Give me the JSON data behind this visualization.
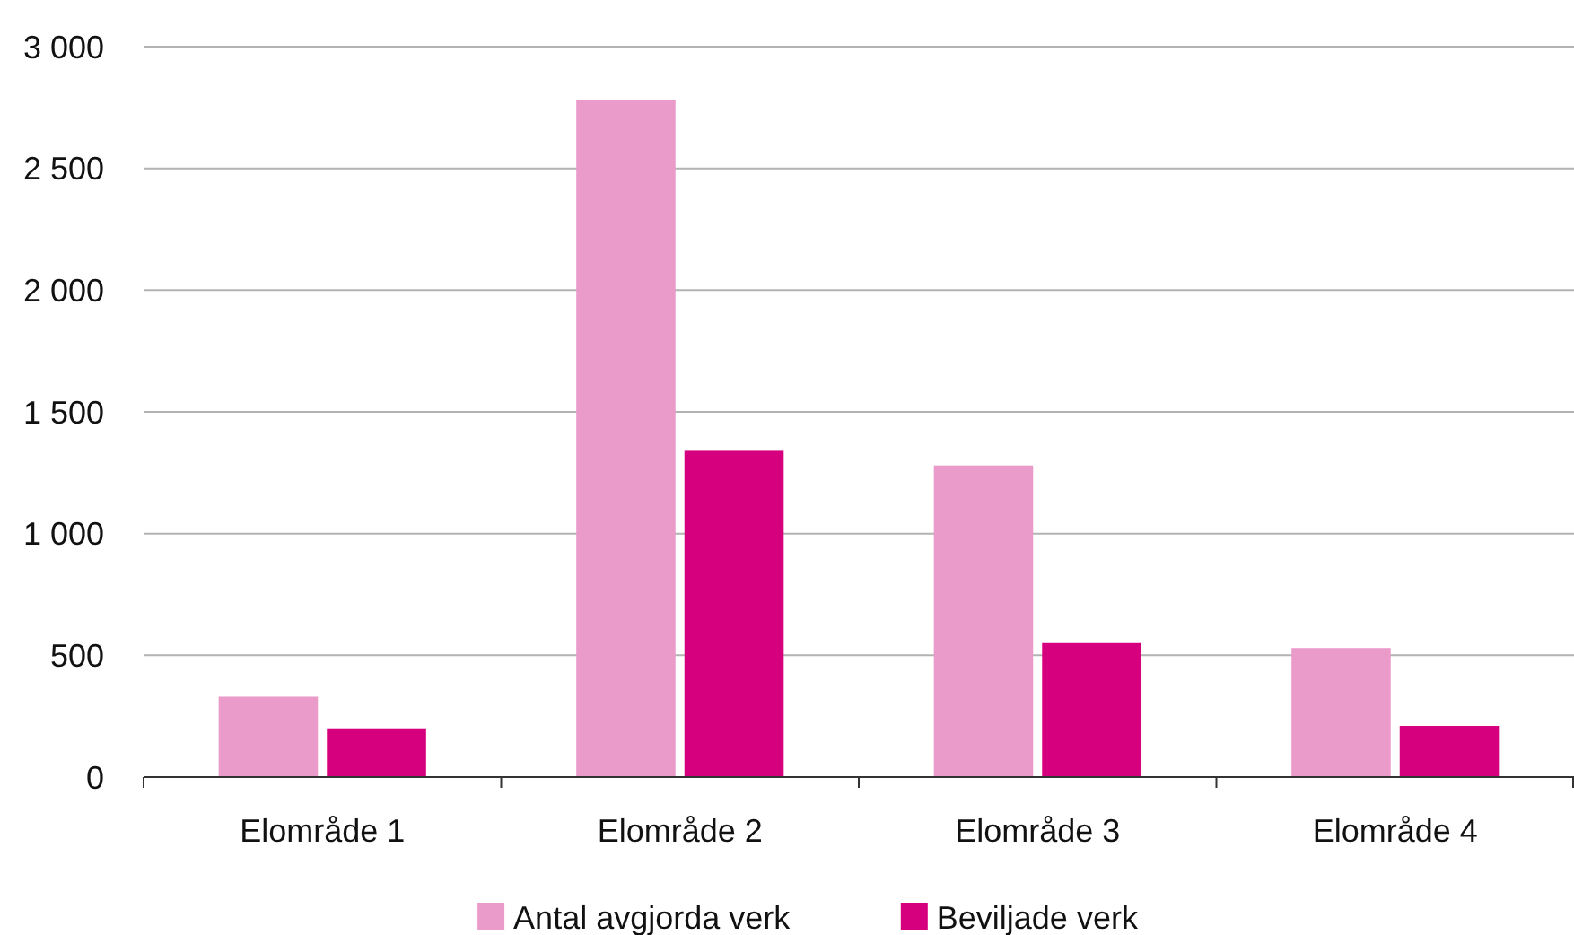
{
  "chart_data": {
    "type": "bar",
    "categories": [
      "Elområde 1",
      "Elområde 2",
      "Elområde 3",
      "Elområde 4"
    ],
    "series": [
      {
        "name": "Antal avgjorda verk",
        "color": "#eb9bca",
        "values": [
          330,
          2780,
          1280,
          530
        ]
      },
      {
        "name": "Beviljade verk",
        "color": "#d6007e",
        "values": [
          200,
          1340,
          550,
          210
        ]
      }
    ],
    "ylim": [
      0,
      3000
    ],
    "yticks": [
      {
        "value": 0,
        "label": "0"
      },
      {
        "value": 500,
        "label": "500"
      },
      {
        "value": 1000,
        "label": "1 000"
      },
      {
        "value": 1500,
        "label": "1 500"
      },
      {
        "value": 2000,
        "label": "2 000"
      },
      {
        "value": 2500,
        "label": "2 500"
      },
      {
        "value": 3000,
        "label": "3 000"
      }
    ],
    "grid": "y",
    "legend": "bottom"
  }
}
